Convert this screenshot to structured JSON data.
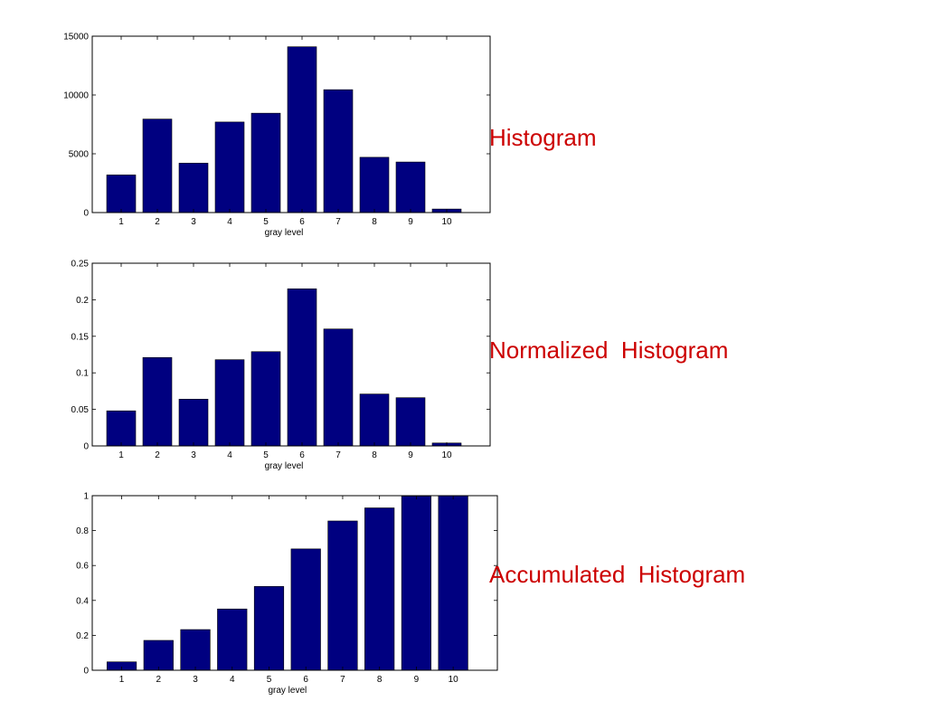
{
  "colors": {
    "bar": "#000080",
    "title": "#cc0000",
    "axis": "#000000"
  },
  "chart_data": [
    {
      "type": "bar",
      "title": "Histogram",
      "categories": [
        "1",
        "2",
        "3",
        "4",
        "5",
        "6",
        "7",
        "8",
        "9",
        "10"
      ],
      "values": [
        3200,
        7950,
        4200,
        7700,
        8450,
        14100,
        10450,
        4700,
        4300,
        300
      ],
      "xlabel": "gray level",
      "ylabel": "",
      "ylim": [
        0,
        15000
      ],
      "yticks": [
        "0",
        "5000",
        "10000",
        "15000"
      ],
      "xlim": [
        0.2,
        11.2
      ],
      "grid": false,
      "legend": "none"
    },
    {
      "type": "bar",
      "title": "Normalized  Histogram",
      "categories": [
        "1",
        "2",
        "3",
        "4",
        "5",
        "6",
        "7",
        "8",
        "9",
        "10"
      ],
      "values": [
        0.048,
        0.121,
        0.064,
        0.118,
        0.129,
        0.215,
        0.16,
        0.071,
        0.066,
        0.004
      ],
      "xlabel": "gray level",
      "ylabel": "",
      "ylim": [
        0,
        0.25
      ],
      "yticks": [
        "0",
        "0.05",
        "0.1",
        "0.15",
        "0.2",
        "0.25"
      ],
      "xlim": [
        0.2,
        11.2
      ],
      "grid": false,
      "legend": "none"
    },
    {
      "type": "bar",
      "title": "Accumulated  Histogram",
      "categories": [
        "1",
        "2",
        "3",
        "4",
        "5",
        "6",
        "7",
        "8",
        "9",
        "10"
      ],
      "values": [
        0.048,
        0.171,
        0.233,
        0.351,
        0.48,
        0.695,
        0.855,
        0.93,
        0.998,
        1.0
      ],
      "xlabel": "gray level",
      "ylabel": "",
      "ylim": [
        0,
        1
      ],
      "yticks": [
        "0",
        "0.2",
        "0.4",
        "0.6",
        "0.8",
        "1"
      ],
      "xlim": [
        0.2,
        11.2
      ],
      "grid": false,
      "legend": "none"
    }
  ]
}
